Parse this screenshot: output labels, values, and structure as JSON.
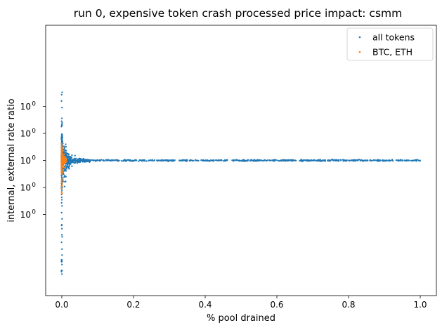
{
  "chart_data": {
    "type": "scatter",
    "title": "run 0, expensive token crash processed price impact: csmm",
    "xlabel": "% pool drained",
    "ylabel": "internal, external rate ratio",
    "xlim": [
      -0.045,
      1.045
    ],
    "ylim": [
      0.9,
      1.1
    ],
    "x_ticks": [
      {
        "value": 0.0,
        "label": "0.0"
      },
      {
        "value": 0.2,
        "label": "0.2"
      },
      {
        "value": 0.4,
        "label": "0.4"
      },
      {
        "value": 0.6,
        "label": "0.6"
      },
      {
        "value": 0.8,
        "label": "0.8"
      },
      {
        "value": 1.0,
        "label": "1.0"
      }
    ],
    "y_ticks": [
      {
        "value": 1.04,
        "base": "10",
        "exponent": "0"
      },
      {
        "value": 1.02,
        "base": "10",
        "exponent": "0"
      },
      {
        "value": 1.0,
        "base": "10",
        "exponent": "0"
      },
      {
        "value": 0.98,
        "base": "10",
        "exponent": "0"
      },
      {
        "value": 0.96,
        "base": "10",
        "exponent": "0"
      }
    ],
    "grid": false,
    "legend_position": "top-right",
    "series": [
      {
        "name": "all tokens",
        "color": "#1f77b4",
        "x_range": [
          0.0,
          1.0
        ],
        "spike_x": 0.0,
        "spike_y_range": [
          0.9127,
          1.0525
        ],
        "plateau_y": 1.0
      },
      {
        "name": "BTC, ETH",
        "color": "#ff7f0e",
        "x_range": [
          0.0,
          0.012
        ],
        "spike_x": 0.0,
        "spike_y_range": [
          0.975,
          1.013
        ],
        "plateau_y": 1.0
      }
    ]
  }
}
